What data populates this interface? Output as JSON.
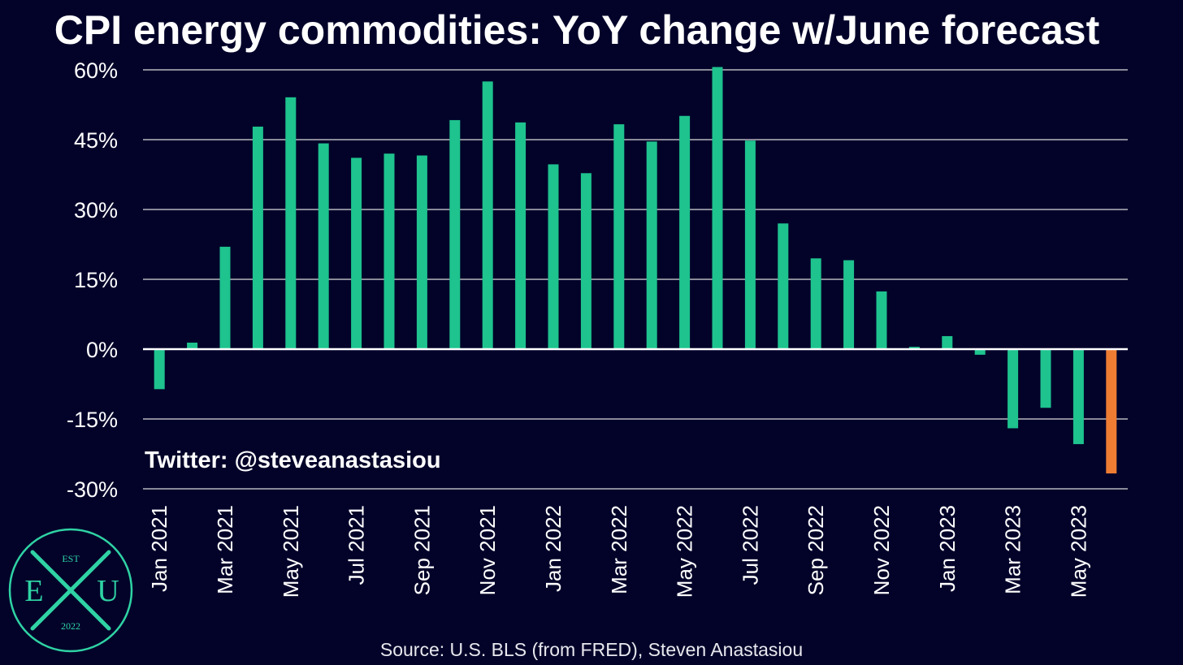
{
  "title": "CPI energy commodities: YoY change w/June forecast",
  "twitter_label": "Twitter: @steveanastasiou",
  "source_label": "Source: U.S. BLS (from FRED), Steven Anastasiou",
  "logo": {
    "top": "EST",
    "left": "E",
    "center": "X",
    "right": "U",
    "bottom": "2022"
  },
  "colors": {
    "background": "#03032a",
    "actual": "#1ec38e",
    "forecast": "#ef7c33",
    "grid": "#8a8a99",
    "zero_line": "#ffffff"
  },
  "chart_data": {
    "type": "bar",
    "title": "CPI energy commodities: YoY change w/June forecast",
    "xlabel": "",
    "ylabel": "",
    "ylim": [
      -30,
      60
    ],
    "yticks": [
      60,
      45,
      30,
      15,
      0,
      -15,
      -30
    ],
    "ytick_labels": [
      "60%",
      "45%",
      "30%",
      "15%",
      "0%",
      "-15%",
      "-30%"
    ],
    "categories": [
      "Jan 2021",
      "Feb 2021",
      "Mar 2021",
      "Apr 2021",
      "May 2021",
      "Jun 2021",
      "Jul 2021",
      "Aug 2021",
      "Sep 2021",
      "Oct 2021",
      "Nov 2021",
      "Dec 2021",
      "Jan 2022",
      "Feb 2022",
      "Mar 2022",
      "Apr 2022",
      "May 2022",
      "Jun 2022",
      "Jul 2022",
      "Aug 2022",
      "Sep 2022",
      "Oct 2022",
      "Nov 2022",
      "Dec 2022",
      "Jan 2023",
      "Feb 2023",
      "Mar 2023",
      "Apr 2023",
      "May 2023",
      "Jun 2023"
    ],
    "x_tick_labels": [
      "Jan 2021",
      "",
      "Mar 2021",
      "",
      "May 2021",
      "",
      "Jul 2021",
      "",
      "Sep 2021",
      "",
      "Nov 2021",
      "",
      "Jan 2022",
      "",
      "Mar 2022",
      "",
      "May 2022",
      "",
      "Jul 2022",
      "",
      "Sep 2022",
      "",
      "Nov 2022",
      "",
      "Jan 2023",
      "",
      "Mar 2023",
      "",
      "May 2023",
      ""
    ],
    "values": [
      -8.6,
      1.4,
      22.0,
      47.8,
      54.1,
      44.2,
      41.1,
      42.0,
      41.6,
      49.2,
      57.5,
      48.7,
      39.7,
      37.8,
      48.3,
      44.6,
      50.1,
      60.6,
      44.8,
      27.0,
      19.5,
      19.1,
      12.4,
      0.5,
      2.8,
      -1.2,
      -17.0,
      -12.6,
      -20.4,
      -26.7
    ],
    "forecast": [
      false,
      false,
      false,
      false,
      false,
      false,
      false,
      false,
      false,
      false,
      false,
      false,
      false,
      false,
      false,
      false,
      false,
      false,
      false,
      false,
      false,
      false,
      false,
      false,
      false,
      false,
      false,
      false,
      false,
      true
    ],
    "grid": true,
    "legend": "none"
  }
}
